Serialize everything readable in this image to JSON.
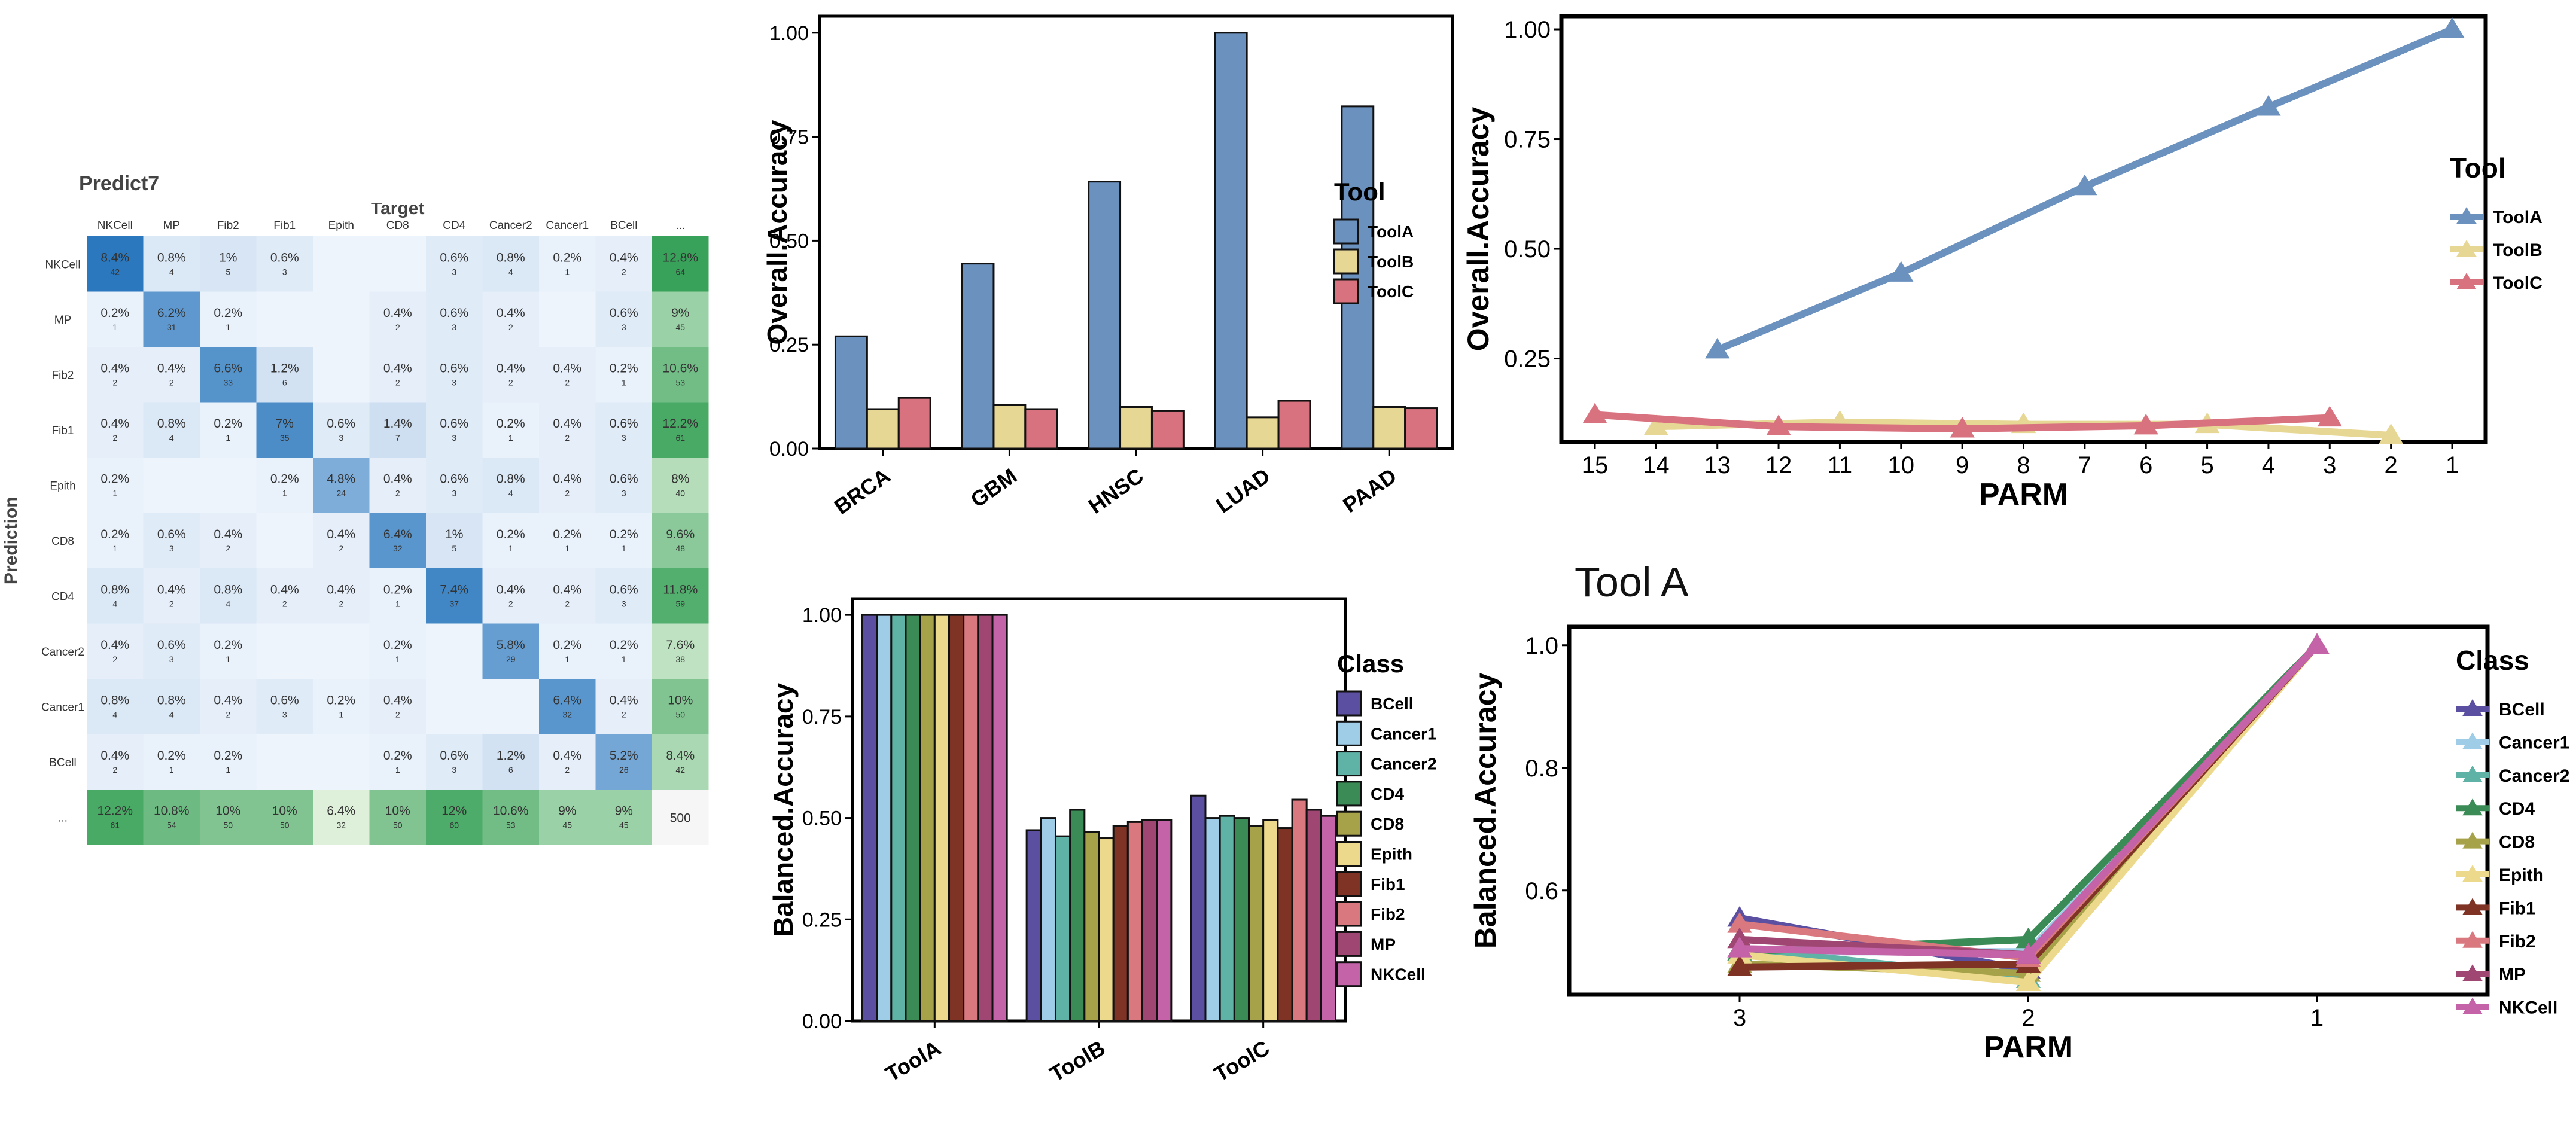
{
  "heatmap": {
    "title": "Predict7",
    "x_title": "Target",
    "y_title": "Prediction",
    "columns": [
      "NKCell",
      "MP",
      "Fib2",
      "Fib1",
      "Epith",
      "CD8",
      "CD4",
      "Cancer2",
      "Cancer1",
      "BCell",
      "..."
    ],
    "rows": [
      "NKCell",
      "MP",
      "Fib2",
      "Fib1",
      "Epith",
      "CD8",
      "CD4",
      "Cancer2",
      "Cancer1",
      "BCell",
      "..."
    ],
    "cells": [
      [
        "8.4%",
        "0.8%",
        "1%",
        "0.6%",
        "",
        "",
        "0.6%",
        "0.8%",
        "0.2%",
        "0.4%",
        "12.8%"
      ],
      [
        "0.2%",
        "6.2%",
        "0.2%",
        "",
        "",
        "0.4%",
        "0.6%",
        "0.4%",
        "",
        "0.6%",
        "9%"
      ],
      [
        "0.4%",
        "0.4%",
        "6.6%",
        "1.2%",
        "",
        "0.4%",
        "0.6%",
        "0.4%",
        "0.4%",
        "0.2%",
        "10.6%"
      ],
      [
        "0.4%",
        "0.8%",
        "0.2%",
        "7%",
        "0.6%",
        "1.4%",
        "0.6%",
        "0.2%",
        "0.4%",
        "0.6%",
        "12.2%"
      ],
      [
        "0.2%",
        "",
        "",
        "0.2%",
        "4.8%",
        "0.4%",
        "0.6%",
        "0.8%",
        "0.4%",
        "0.6%",
        "8%"
      ],
      [
        "0.2%",
        "0.6%",
        "0.4%",
        "",
        "0.4%",
        "6.4%",
        "1%",
        "0.2%",
        "0.2%",
        "0.2%",
        "9.6%"
      ],
      [
        "0.8%",
        "0.4%",
        "0.8%",
        "0.4%",
        "0.4%",
        "0.2%",
        "7.4%",
        "0.4%",
        "0.4%",
        "0.6%",
        "11.8%"
      ],
      [
        "0.4%",
        "0.6%",
        "0.2%",
        "",
        "",
        "0.2%",
        "",
        "5.8%",
        "0.2%",
        "0.2%",
        "7.6%"
      ],
      [
        "0.8%",
        "0.8%",
        "0.4%",
        "0.6%",
        "0.2%",
        "0.4%",
        "",
        "",
        "6.4%",
        "0.4%",
        "10%"
      ],
      [
        "0.4%",
        "0.2%",
        "0.2%",
        "",
        "",
        "0.2%",
        "0.6%",
        "1.2%",
        "0.4%",
        "5.2%",
        "8.4%"
      ],
      [
        "12.2%",
        "10.8%",
        "10%",
        "10%",
        "6.4%",
        "10%",
        "12%",
        "10.6%",
        "9%",
        "9%",
        ""
      ]
    ],
    "counts": [
      [
        "42",
        "4",
        "5",
        "3",
        "",
        "",
        "3",
        "4",
        "1",
        "2",
        "64"
      ],
      [
        "1",
        "31",
        "1",
        "",
        "",
        "2",
        "3",
        "2",
        "",
        "3",
        "45"
      ],
      [
        "2",
        "2",
        "33",
        "6",
        "",
        "2",
        "3",
        "2",
        "2",
        "1",
        "53"
      ],
      [
        "2",
        "4",
        "1",
        "35",
        "3",
        "7",
        "3",
        "1",
        "2",
        "3",
        "61"
      ],
      [
        "1",
        "",
        "",
        "1",
        "24",
        "2",
        "3",
        "4",
        "2",
        "3",
        "40"
      ],
      [
        "1",
        "3",
        "2",
        "",
        "2",
        "32",
        "5",
        "1",
        "1",
        "1",
        "48"
      ],
      [
        "4",
        "2",
        "4",
        "2",
        "2",
        "1",
        "37",
        "2",
        "2",
        "3",
        "59"
      ],
      [
        "2",
        "3",
        "1",
        "",
        "",
        "1",
        "",
        "29",
        "1",
        "1",
        "38"
      ],
      [
        "4",
        "4",
        "2",
        "3",
        "1",
        "2",
        "",
        "",
        "32",
        "2",
        "50"
      ],
      [
        "2",
        "1",
        "1",
        "",
        "",
        "1",
        "3",
        "6",
        "2",
        "26",
        "42"
      ],
      [
        "61",
        "54",
        "50",
        "50",
        "32",
        "50",
        "60",
        "53",
        "45",
        "45",
        "500"
      ]
    ],
    "total": "500"
  },
  "bar1": {
    "type": "bar",
    "ylabel": "Overall.Accuracy",
    "categories": [
      "BRCA",
      "GBM",
      "HNSC",
      "LUAD",
      "PAAD"
    ],
    "yticks": [
      "0.00",
      "0.25",
      "0.50",
      "0.75",
      "1.00"
    ],
    "ylim": [
      0,
      1.04
    ],
    "series": [
      {
        "name": "ToolA",
        "values": [
          0.27,
          0.445,
          0.642,
          1.0,
          0.823
        ]
      },
      {
        "name": "ToolB",
        "values": [
          0.095,
          0.105,
          0.1,
          0.075,
          0.1
        ]
      },
      {
        "name": "ToolC",
        "values": [
          0.122,
          0.095,
          0.09,
          0.115,
          0.097
        ]
      }
    ],
    "legend_title": "Tool",
    "colors": [
      "#6b91bf",
      "#e7d794",
      "#d9727f"
    ]
  },
  "bar2": {
    "type": "bar",
    "ylabel": "Balanced.Accuracy",
    "categories": [
      "ToolA",
      "ToolB",
      "ToolC"
    ],
    "yticks": [
      "0.00",
      "0.25",
      "0.50",
      "0.75",
      "1.00"
    ],
    "ylim": [
      0,
      1.04
    ],
    "series": [
      {
        "name": "BCell",
        "values": [
          1.0,
          0.47,
          0.555
        ]
      },
      {
        "name": "Cancer1",
        "values": [
          1.0,
          0.5,
          0.5
        ]
      },
      {
        "name": "Cancer2",
        "values": [
          1.0,
          0.455,
          0.505
        ]
      },
      {
        "name": "CD4",
        "values": [
          1.0,
          0.52,
          0.5
        ]
      },
      {
        "name": "CD8",
        "values": [
          1.0,
          0.465,
          0.48
        ]
      },
      {
        "name": "Epith",
        "values": [
          1.0,
          0.45,
          0.495
        ]
      },
      {
        "name": "Fib1",
        "values": [
          1.0,
          0.48,
          0.475
        ]
      },
      {
        "name": "Fib2",
        "values": [
          1.0,
          0.49,
          0.545
        ]
      },
      {
        "name": "MP",
        "values": [
          1.0,
          0.495,
          0.52
        ]
      },
      {
        "name": "NKCell",
        "values": [
          1.0,
          0.495,
          0.505
        ]
      }
    ],
    "legend_title": "Class",
    "colors": [
      "#5a4fa0",
      "#9fcde8",
      "#5fb3a6",
      "#3a8b55",
      "#a6a24a",
      "#ecd98c",
      "#7e3325",
      "#d9787e",
      "#a04672",
      "#c463a8"
    ]
  },
  "line1": {
    "type": "line",
    "xlabel": "PARM",
    "ylabel": "Overall.Accuracy",
    "xticks": [
      "15",
      "14",
      "13",
      "12",
      "11",
      "10",
      "9",
      "8",
      "7",
      "6",
      "5",
      "4",
      "3",
      "2",
      "1"
    ],
    "yticks": [
      "0.25",
      "0.50",
      "0.75",
      "1.00"
    ],
    "ylim": [
      0.06,
      1.03
    ],
    "series": [
      {
        "name": "ToolA",
        "x": [
          "13",
          "10",
          "7",
          "4",
          "1"
        ],
        "values": [
          0.27,
          0.445,
          0.642,
          0.823,
          1.0
        ]
      },
      {
        "name": "ToolB",
        "x": [
          "14",
          "11",
          "8",
          "5",
          "2"
        ],
        "values": [
          0.095,
          0.105,
          0.1,
          0.1,
          0.075
        ]
      },
      {
        "name": "ToolC",
        "x": [
          "15",
          "12",
          "9",
          "6",
          "3"
        ],
        "values": [
          0.122,
          0.095,
          0.09,
          0.097,
          0.115
        ]
      }
    ],
    "legend_title": "Tool",
    "colors": [
      "#6b91bf",
      "#e7d794",
      "#d9727f"
    ]
  },
  "line2": {
    "type": "line",
    "title": "Tool A",
    "xlabel": "PARM",
    "ylabel": "Balanced.Accuracy",
    "xticks": [
      "3",
      "2",
      "1"
    ],
    "yticks": [
      "0.6",
      "0.8",
      "1.0"
    ],
    "ylim": [
      0.43,
      1.03
    ],
    "series": [
      {
        "name": "BCell",
        "x": [
          "3",
          "2",
          "1"
        ],
        "values": [
          0.555,
          0.47,
          1.0
        ]
      },
      {
        "name": "Cancer1",
        "x": [
          "3",
          "2",
          "1"
        ],
        "values": [
          0.5,
          0.5,
          1.0
        ]
      },
      {
        "name": "Cancer2",
        "x": [
          "3",
          "2",
          "1"
        ],
        "values": [
          0.505,
          0.455,
          1.0
        ]
      },
      {
        "name": "CD4",
        "x": [
          "3",
          "2",
          "1"
        ],
        "values": [
          0.5,
          0.52,
          1.0
        ]
      },
      {
        "name": "CD8",
        "x": [
          "3",
          "2",
          "1"
        ],
        "values": [
          0.48,
          0.465,
          1.0
        ]
      },
      {
        "name": "Epith",
        "x": [
          "3",
          "2",
          "1"
        ],
        "values": [
          0.495,
          0.45,
          1.0
        ]
      },
      {
        "name": "Fib1",
        "x": [
          "3",
          "2",
          "1"
        ],
        "values": [
          0.475,
          0.48,
          1.0
        ]
      },
      {
        "name": "Fib2",
        "x": [
          "3",
          "2",
          "1"
        ],
        "values": [
          0.545,
          0.49,
          1.0
        ]
      },
      {
        "name": "MP",
        "x": [
          "3",
          "2",
          "1"
        ],
        "values": [
          0.52,
          0.495,
          1.0
        ]
      },
      {
        "name": "NKCell",
        "x": [
          "3",
          "2",
          "1"
        ],
        "values": [
          0.505,
          0.495,
          1.0
        ]
      }
    ],
    "legend_title": "Class",
    "colors": [
      "#5a4fa0",
      "#9fcde8",
      "#5fb3a6",
      "#3a8b55",
      "#a6a24a",
      "#ecd98c",
      "#7e3325",
      "#d9787e",
      "#a04672",
      "#c463a8"
    ]
  },
  "chart_data": [
    {
      "type": "heatmap",
      "title": "Predict7",
      "xlabel": "Target",
      "ylabel": "Prediction",
      "x": [
        "NKCell",
        "MP",
        "Fib2",
        "Fib1",
        "Epith",
        "CD8",
        "CD4",
        "Cancer2",
        "Cancer1",
        "BCell",
        "..."
      ],
      "y": [
        "NKCell",
        "MP",
        "Fib2",
        "Fib1",
        "Epith",
        "CD8",
        "CD4",
        "Cancer2",
        "Cancer1",
        "BCell",
        "..."
      ]
    },
    {
      "type": "bar",
      "categories": [
        "BRCA",
        "GBM",
        "HNSC",
        "LUAD",
        "PAAD"
      ],
      "ylabel": "Overall.Accuracy",
      "ylim": [
        0,
        1.04
      ],
      "legend": "right",
      "series": [
        {
          "name": "ToolA",
          "values": [
            0.27,
            0.445,
            0.642,
            1.0,
            0.823
          ]
        },
        {
          "name": "ToolB",
          "values": [
            0.095,
            0.105,
            0.1,
            0.075,
            0.1
          ]
        },
        {
          "name": "ToolC",
          "values": [
            0.122,
            0.095,
            0.09,
            0.115,
            0.097
          ]
        }
      ]
    },
    {
      "type": "bar",
      "categories": [
        "ToolA",
        "ToolB",
        "ToolC"
      ],
      "ylabel": "Balanced.Accuracy",
      "ylim": [
        0,
        1.04
      ],
      "legend": "right",
      "series": [
        {
          "name": "BCell",
          "values": [
            1.0,
            0.47,
            0.555
          ]
        },
        {
          "name": "Cancer1",
          "values": [
            1.0,
            0.5,
            0.5
          ]
        },
        {
          "name": "Cancer2",
          "values": [
            1.0,
            0.455,
            0.505
          ]
        },
        {
          "name": "CD4",
          "values": [
            1.0,
            0.52,
            0.5
          ]
        },
        {
          "name": "CD8",
          "values": [
            1.0,
            0.465,
            0.48
          ]
        },
        {
          "name": "Epith",
          "values": [
            1.0,
            0.45,
            0.495
          ]
        },
        {
          "name": "Fib1",
          "values": [
            1.0,
            0.48,
            0.475
          ]
        },
        {
          "name": "Fib2",
          "values": [
            1.0,
            0.49,
            0.545
          ]
        },
        {
          "name": "MP",
          "values": [
            1.0,
            0.495,
            0.52
          ]
        },
        {
          "name": "NKCell",
          "values": [
            1.0,
            0.495,
            0.505
          ]
        }
      ]
    },
    {
      "type": "line",
      "xlabel": "PARM",
      "ylabel": "Overall.Accuracy",
      "x": [
        "15",
        "14",
        "13",
        "12",
        "11",
        "10",
        "9",
        "8",
        "7",
        "6",
        "5",
        "4",
        "3",
        "2",
        "1"
      ],
      "ylim": [
        0.06,
        1.03
      ],
      "legend": "right",
      "series": [
        {
          "name": "ToolA",
          "x": [
            "13",
            "10",
            "7",
            "4",
            "1"
          ],
          "values": [
            0.27,
            0.445,
            0.642,
            0.823,
            1.0
          ]
        },
        {
          "name": "ToolB",
          "x": [
            "14",
            "11",
            "8",
            "5",
            "2"
          ],
          "values": [
            0.095,
            0.105,
            0.1,
            0.1,
            0.075
          ]
        },
        {
          "name": "ToolC",
          "x": [
            "15",
            "12",
            "9",
            "6",
            "3"
          ],
          "values": [
            0.122,
            0.095,
            0.09,
            0.097,
            0.115
          ]
        }
      ]
    },
    {
      "type": "line",
      "title": "Tool A",
      "xlabel": "PARM",
      "ylabel": "Balanced.Accuracy",
      "x": [
        "3",
        "2",
        "1"
      ],
      "ylim": [
        0.43,
        1.03
      ],
      "legend": "right",
      "series": [
        {
          "name": "BCell",
          "values": [
            0.555,
            0.47,
            1.0
          ]
        },
        {
          "name": "Cancer1",
          "values": [
            0.5,
            0.5,
            1.0
          ]
        },
        {
          "name": "Cancer2",
          "values": [
            0.505,
            0.455,
            1.0
          ]
        },
        {
          "name": "CD4",
          "values": [
            0.5,
            0.52,
            1.0
          ]
        },
        {
          "name": "CD8",
          "values": [
            0.48,
            0.465,
            1.0
          ]
        },
        {
          "name": "Epith",
          "values": [
            0.495,
            0.45,
            1.0
          ]
        },
        {
          "name": "Fib1",
          "values": [
            0.475,
            0.48,
            1.0
          ]
        },
        {
          "name": "Fib2",
          "values": [
            0.545,
            0.49,
            1.0
          ]
        },
        {
          "name": "MP",
          "values": [
            0.52,
            0.495,
            1.0
          ]
        },
        {
          "name": "NKCell",
          "values": [
            0.505,
            0.495,
            1.0
          ]
        }
      ]
    }
  ]
}
